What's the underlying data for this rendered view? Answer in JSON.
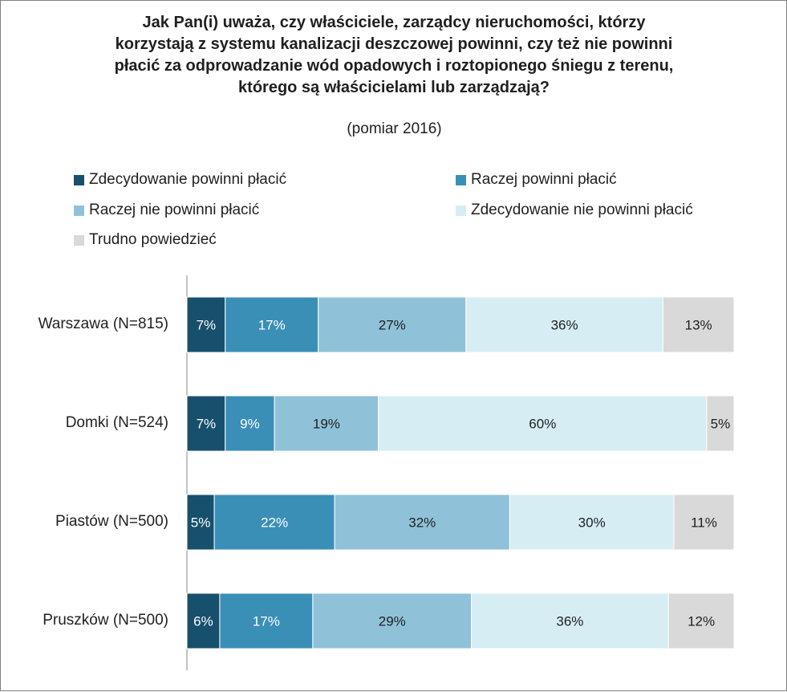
{
  "chart_data": {
    "type": "bar",
    "orientation": "horizontal",
    "stacked": true,
    "title_lines": [
      "Jak Pan(i) uważa, czy właściciele, zarządcy nieruchomości, którzy",
      "korzystają z systemu kanalizacji deszczowej powinni, czy też nie powinni",
      "płacić za odprowadzanie wód opadowych i roztopionego śniegu z terenu,",
      "którego są właścicielami lub zarządzają?"
    ],
    "subtitle": "(pomiar 2016)",
    "categories": [
      "Warszawa (N=815)",
      "Domki (N=524)",
      "Piastów (N=500)",
      "Pruszków (N=500)"
    ],
    "series": [
      {
        "name": "Zdecydowanie powinni płacić",
        "color": "#17506d",
        "values": [
          7,
          7,
          5,
          6
        ],
        "labels": [
          "7%",
          "7%",
          "5%",
          "6%"
        ],
        "label_color": "#ffffff"
      },
      {
        "name": "Raczej powinni płacić",
        "color": "#3a8fb7",
        "values": [
          17,
          9,
          22,
          17
        ],
        "labels": [
          "17%",
          "9%",
          "22%",
          "17%"
        ],
        "label_color": "#ffffff"
      },
      {
        "name": "Raczej nie powinni płacić",
        "color": "#8fc2d9",
        "values": [
          27,
          19,
          32,
          29
        ],
        "labels": [
          "27%",
          "19%",
          "32%",
          "29%"
        ],
        "label_color": "#1f1f1f"
      },
      {
        "name": "Zdecydowanie nie powinni płacić",
        "color": "#d6edf3",
        "values": [
          36,
          60,
          30,
          36
        ],
        "labels": [
          "36%",
          "60%",
          "30%",
          "36%"
        ],
        "label_color": "#1f1f1f"
      },
      {
        "name": "Trudno powiedzieć",
        "color": "#d9d9d9",
        "values": [
          13,
          5,
          11,
          12
        ],
        "labels": [
          "13%",
          "5%",
          "11%",
          "12%"
        ],
        "label_color": "#1f1f1f"
      }
    ],
    "xlim": [
      0,
      100
    ],
    "grid": false,
    "legend_position": "top"
  }
}
